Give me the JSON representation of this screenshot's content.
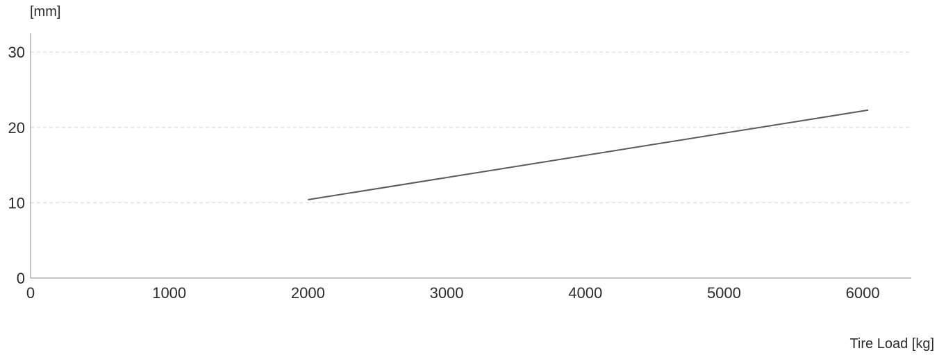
{
  "chart_data": {
    "type": "line",
    "xlabel": "Tire Load [kg]",
    "ylabel": "[mm]",
    "xlim": [
      0,
      6350
    ],
    "ylim": [
      0,
      32.5
    ],
    "xticks": [
      0,
      1000,
      2000,
      3000,
      4000,
      5000,
      6000
    ],
    "yticks": [
      0,
      10,
      20,
      30
    ],
    "grid": "horizontal-dashed",
    "series": [
      {
        "x": [
          2000,
          6040
        ],
        "y": [
          10.4,
          22.3
        ],
        "color": "#5a5a5a"
      }
    ]
  }
}
